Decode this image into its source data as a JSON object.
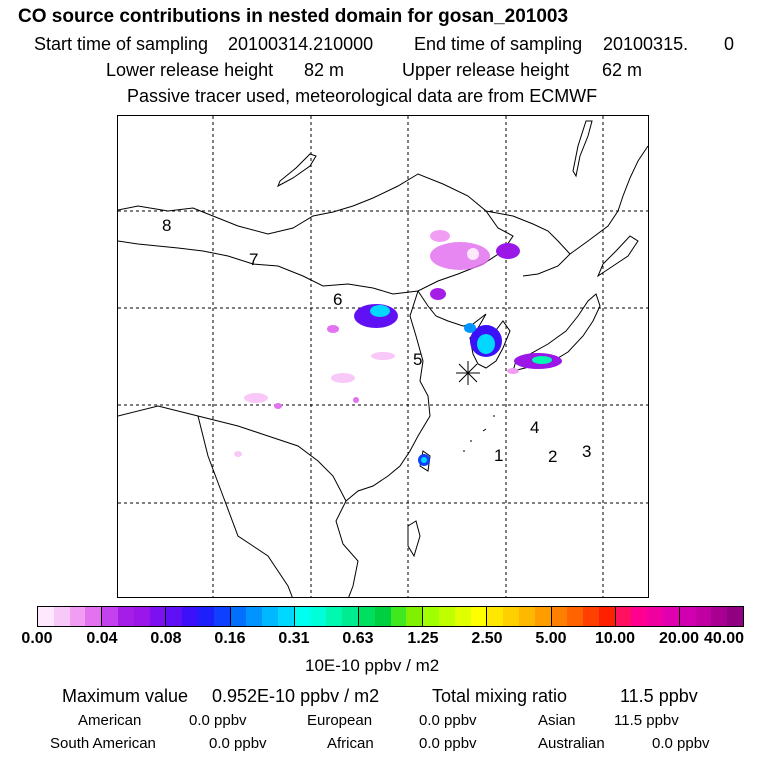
{
  "header": {
    "title": "CO  source contributions in nested domain for gosan_201003",
    "start_label": "Start time of sampling",
    "start_value": "20100314.210000",
    "end_label": "End time of sampling",
    "end_value": "20100315.",
    "end_value_suffix": "0",
    "lower_label": "Lower release height",
    "lower_value": "82 m",
    "upper_label": "Upper release height",
    "upper_value": "62 m",
    "tracer_note": "Passive tracer used, meteorological data are from ECMWF"
  },
  "map": {
    "regions": [
      "1",
      "2",
      "3",
      "4",
      "5",
      "6",
      "7",
      "8"
    ],
    "receptor_marker": "star-marker"
  },
  "colorbar": {
    "colors": [
      "#fde8fd",
      "#f8c9f8",
      "#f19df3",
      "#e272f0",
      "#c341ee",
      "#a51ee8",
      "#9a17e8",
      "#7d10f0",
      "#6010f5",
      "#3c10f8",
      "#1e20fb",
      "#1040ff",
      "#0070ff",
      "#0094ff",
      "#00b8ff",
      "#00d8ff",
      "#00fff0",
      "#00ffd8",
      "#00f8b0",
      "#00ec90",
      "#00e060",
      "#00d040",
      "#40e820",
      "#80f000",
      "#a0ff00",
      "#c0ff00",
      "#e0ff00",
      "#ffff00",
      "#ffe800",
      "#ffd000",
      "#ffb800",
      "#ff9c00",
      "#ff8000",
      "#ff6400",
      "#ff4000",
      "#ff2000",
      "#ff1060",
      "#ff0090",
      "#f000a0",
      "#e000b0",
      "#d000b0",
      "#c000a0",
      "#a80090",
      "#900080",
      "#7a0070",
      "#640060",
      "#500048",
      "#3c0038"
    ],
    "ticks": [
      "0.00",
      "0.04",
      "0.08",
      "0.16",
      "0.31",
      "0.63",
      "1.25",
      "2.50",
      "5.00",
      "10.00",
      "20.00",
      "40.00"
    ],
    "unit": "10E-10 ppbv / m2"
  },
  "stats": {
    "max_label": "Maximum value",
    "max_value": "0.952E-10 ppbv / m2",
    "total_label": "Total mixing ratio",
    "total_value": "11.5 ppbv",
    "american_label": "American",
    "american_value": "0.0 ppbv",
    "european_label": "European",
    "european_value": "0.0 ppbv",
    "asian_label": "Asian",
    "asian_value": "11.5 ppbv",
    "south_american_label": "South American",
    "south_american_value": "0.0 ppbv",
    "african_label": "African",
    "african_value": "0.0 ppbv",
    "australian_label": "Australian",
    "australian_value": "0.0 ppbv"
  }
}
